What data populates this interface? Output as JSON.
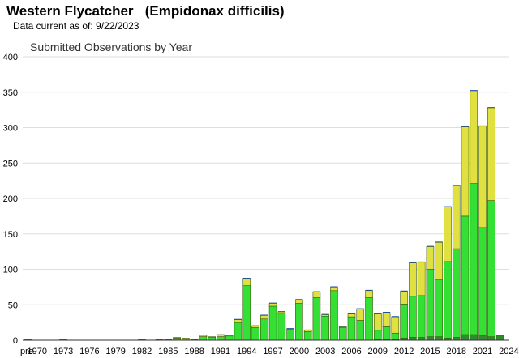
{
  "title": "Western Flycatcher   (Empidonax difficilis)",
  "subtitle": "Data current as of: 9/22/2023",
  "chart_data": {
    "type": "bar",
    "stacked": true,
    "title": "Submitted Observations by Year",
    "xlabel": "",
    "ylabel": "",
    "ylim": [
      0,
      400
    ],
    "yticks": [
      0,
      50,
      100,
      150,
      200,
      250,
      300,
      350,
      400
    ],
    "grid": true,
    "legend": "none",
    "colors": {
      "dark_green": "#2e8b2e",
      "green": "#33e033",
      "yellow": "#e0e040",
      "navy_cap": "#1f4e9e",
      "bar_outline": "#3a5a10"
    },
    "categories": [
      "pre",
      "1970",
      "1971",
      "1972",
      "1973",
      "1974",
      "1975",
      "1976",
      "1977",
      "1978",
      "1979",
      "1980",
      "1981",
      "1982",
      "1983",
      "1984",
      "1985",
      "1986",
      "1987",
      "1988",
      "1989",
      "1990",
      "1991",
      "1992",
      "1993",
      "1994",
      "1995",
      "1996",
      "1997",
      "1998",
      "1999",
      "2000",
      "2001",
      "2002",
      "2003",
      "2004",
      "2005",
      "2006",
      "2007",
      "2008",
      "2009",
      "2010",
      "2011",
      "2012",
      "2013",
      "2014",
      "2015",
      "2016",
      "2017",
      "2018",
      "2019",
      "2020",
      "2021",
      "2022",
      "2023",
      "2024"
    ],
    "tick_labels": [
      "pre",
      "1970",
      "",
      "",
      "1973",
      "",
      "",
      "1976",
      "",
      "",
      "1979",
      "",
      "",
      "1982",
      "",
      "",
      "1985",
      "",
      "",
      "1988",
      "",
      "",
      "1991",
      "",
      "",
      "1994",
      "",
      "",
      "1997",
      "",
      "",
      "2000",
      "",
      "",
      "2003",
      "",
      "",
      "2006",
      "",
      "",
      "2009",
      "",
      "",
      "2012",
      "",
      "",
      "2015",
      "",
      "",
      "2018",
      "",
      "",
      "2021",
      "",
      "",
      "2024"
    ],
    "series": [
      {
        "color": "dark_green",
        "values": [
          0,
          0,
          0,
          0,
          0,
          0,
          0,
          0,
          0,
          0,
          0,
          0,
          0,
          0,
          0,
          0,
          0,
          0,
          0,
          0,
          0,
          0,
          0,
          0,
          0,
          0,
          0,
          0,
          0,
          0,
          0,
          0,
          0,
          0,
          0,
          0,
          0,
          0,
          0,
          0,
          1,
          1,
          1,
          3,
          4,
          4,
          5,
          5,
          3,
          4,
          8,
          8,
          7,
          5,
          7,
          0
        ]
      },
      {
        "color": "green",
        "values": [
          1,
          0,
          0,
          0,
          1,
          0,
          0,
          0,
          0,
          0,
          0,
          0,
          0,
          1,
          0,
          1,
          1,
          3,
          2,
          1,
          5,
          4,
          5,
          6,
          25,
          77,
          18,
          30,
          48,
          38,
          15,
          52,
          12,
          60,
          34,
          70,
          18,
          33,
          28,
          60,
          13,
          18,
          9,
          48,
          58,
          59,
          95,
          80,
          108,
          125,
          167,
          213,
          152,
          192,
          0,
          0
        ]
      },
      {
        "color": "yellow",
        "values": [
          0,
          0,
          0,
          0,
          0,
          0,
          0,
          0,
          0,
          0,
          0,
          0,
          0,
          0,
          0,
          0,
          0,
          1,
          1,
          0,
          2,
          1,
          3,
          1,
          4,
          10,
          2,
          5,
          4,
          2,
          1,
          5,
          2,
          8,
          2,
          5,
          1,
          4,
          16,
          10,
          23,
          20,
          23,
          18,
          47,
          47,
          32,
          53,
          77,
          89,
          126,
          131,
          143,
          131,
          0,
          0
        ]
      },
      {
        "color": "navy_cap",
        "values": [
          0,
          0,
          0,
          0,
          0,
          0,
          0,
          0,
          0,
          0,
          0,
          0,
          0,
          0,
          0,
          0,
          0,
          0,
          0,
          0,
          0,
          0,
          0,
          0,
          1,
          1,
          1,
          1,
          1,
          1,
          1,
          1,
          1,
          1,
          1,
          1,
          1,
          1,
          1,
          1,
          1,
          1,
          1,
          1,
          1,
          1,
          1,
          1,
          1,
          1,
          1,
          1,
          1,
          1,
          0,
          0
        ]
      }
    ]
  }
}
